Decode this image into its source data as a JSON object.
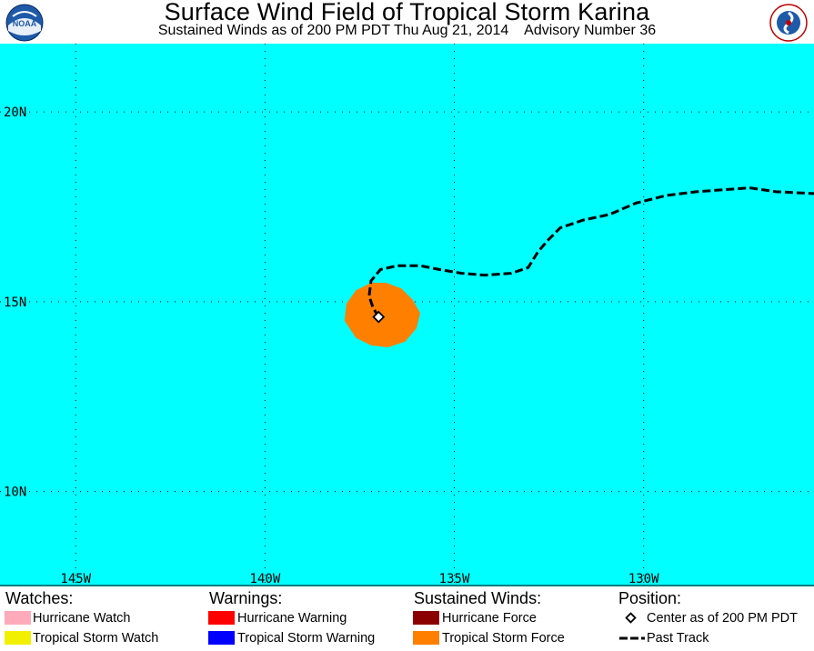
{
  "header": {
    "title": "Surface Wind Field of Tropical Storm Karina",
    "subtitle": "Sustained Winds as of 200 PM PDT Thu Aug 21, 2014    Advisory Number 36",
    "noaa_logo_text": "NOAA",
    "nws_logo_text": "NATIONAL WEATHER SERVICE"
  },
  "map": {
    "ocean_color": "#00ffff",
    "lon_range": [
      -147,
      -125.5
    ],
    "lat_range": [
      7.5,
      21.8
    ],
    "lat_lines": [
      {
        "value": 20,
        "label": "20N"
      },
      {
        "value": 15,
        "label": "15N"
      },
      {
        "value": 10,
        "label": "10N"
      }
    ],
    "lon_lines": [
      {
        "value": -145,
        "label": "145W"
      },
      {
        "value": -140,
        "label": "140W"
      },
      {
        "value": -135,
        "label": "135W"
      },
      {
        "value": -130,
        "label": "130W"
      }
    ],
    "center": {
      "lon": -137.0,
      "lat": 14.6
    },
    "tropical_storm_wind_field": {
      "color": "#ff8000",
      "points": [
        [
          -137.2,
          15.5
        ],
        [
          -136.8,
          15.5
        ],
        [
          -136.4,
          15.35
        ],
        [
          -136.1,
          15.05
        ],
        [
          -135.9,
          14.7
        ],
        [
          -136.0,
          14.3
        ],
        [
          -136.3,
          13.95
        ],
        [
          -136.75,
          13.8
        ],
        [
          -137.2,
          13.85
        ],
        [
          -137.6,
          14.05
        ],
        [
          -137.9,
          14.5
        ],
        [
          -137.85,
          14.95
        ],
        [
          -137.6,
          15.3
        ]
      ]
    },
    "past_track": [
      [
        -137.0,
        14.6
      ],
      [
        -137.15,
        14.85
      ],
      [
        -137.25,
        15.15
      ],
      [
        -137.2,
        15.55
      ],
      [
        -136.95,
        15.85
      ],
      [
        -136.5,
        15.95
      ],
      [
        -135.9,
        15.95
      ],
      [
        -135.4,
        15.85
      ],
      [
        -134.8,
        15.75
      ],
      [
        -134.2,
        15.7
      ],
      [
        -133.5,
        15.75
      ],
      [
        -133.05,
        15.9
      ],
      [
        -132.8,
        16.3
      ],
      [
        -132.55,
        16.6
      ],
      [
        -132.2,
        16.95
      ],
      [
        -131.6,
        17.15
      ],
      [
        -130.9,
        17.3
      ],
      [
        -130.2,
        17.6
      ],
      [
        -129.4,
        17.8
      ],
      [
        -128.6,
        17.9
      ],
      [
        -127.9,
        17.95
      ],
      [
        -127.2,
        18.0
      ],
      [
        -126.5,
        17.9
      ],
      [
        -125.5,
        17.85
      ]
    ]
  },
  "legend": {
    "watches": {
      "heading": "Watches:",
      "items": [
        {
          "label": "Hurricane Watch",
          "color": "#ffaabb"
        },
        {
          "label": "Tropical Storm Watch",
          "color": "#f0f000"
        }
      ]
    },
    "warnings": {
      "heading": "Warnings:",
      "items": [
        {
          "label": "Hurricane Warning",
          "color": "#ff0000"
        },
        {
          "label": "Tropical Storm Warning",
          "color": "#0000ff"
        }
      ]
    },
    "winds": {
      "heading": "Sustained Winds:",
      "items": [
        {
          "label": "Hurricane Force",
          "color": "#8b0000"
        },
        {
          "label": "Tropical Storm Force",
          "color": "#ff8000"
        }
      ]
    },
    "position": {
      "heading": "Position:",
      "center_label": "Center as of 200 PM PDT",
      "track_label": "Past Track"
    }
  }
}
